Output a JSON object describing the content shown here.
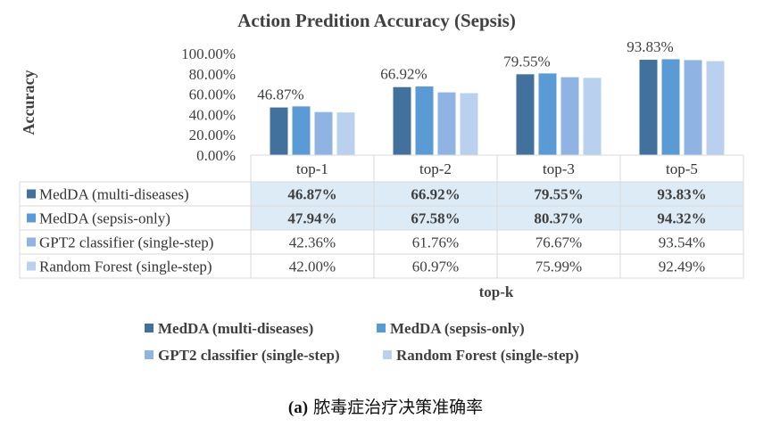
{
  "chart_data": {
    "type": "bar",
    "title": "Action Predition Accuracy (Sepsis)",
    "xlabel": "top-k",
    "ylabel": "Accuracy",
    "ylim": [
      0,
      100
    ],
    "yticks": [
      "0.00%",
      "20.00%",
      "40.00%",
      "60.00%",
      "80.00%",
      "100.00%"
    ],
    "categories": [
      "top-1",
      "top-2",
      "top-3",
      "top-5"
    ],
    "series": [
      {
        "name": "MedDA (multi-diseases)",
        "values": [
          46.87,
          66.92,
          79.55,
          93.83
        ],
        "labels": [
          "46.87%",
          "66.92%",
          "79.55%",
          "93.83%"
        ],
        "color": "#41719C",
        "highlight": true,
        "bold": true
      },
      {
        "name": "MedDA (sepsis-only)",
        "values": [
          47.94,
          67.58,
          80.37,
          94.32
        ],
        "labels": [
          "47.94%",
          "67.58%",
          "80.37%",
          "94.32%"
        ],
        "color": "#5B9BD5",
        "highlight": true,
        "bold": true
      },
      {
        "name": "GPT2 classifier (single-step)",
        "values": [
          42.36,
          61.76,
          76.67,
          93.54
        ],
        "labels": [
          "42.36%",
          "61.76%",
          "76.67%",
          "93.54%"
        ],
        "color": "#8FB4E3",
        "highlight": false,
        "bold": false
      },
      {
        "name": "Random Forest (single-step)",
        "values": [
          42.0,
          60.97,
          75.99,
          92.49
        ],
        "labels": [
          "42.00%",
          "60.97%",
          "75.99%",
          "92.49%"
        ],
        "color": "#B9D0EE",
        "highlight": false,
        "bold": false
      }
    ],
    "data_labels_series": 0,
    "highlight_color": "#DDEBF7",
    "grid": false,
    "legend": "bottom",
    "legend_rows": [
      [
        0,
        1
      ],
      [
        2,
        3
      ]
    ]
  },
  "caption": {
    "prefix": "(a)",
    "text": "脓毒症治疗决策准确率"
  }
}
